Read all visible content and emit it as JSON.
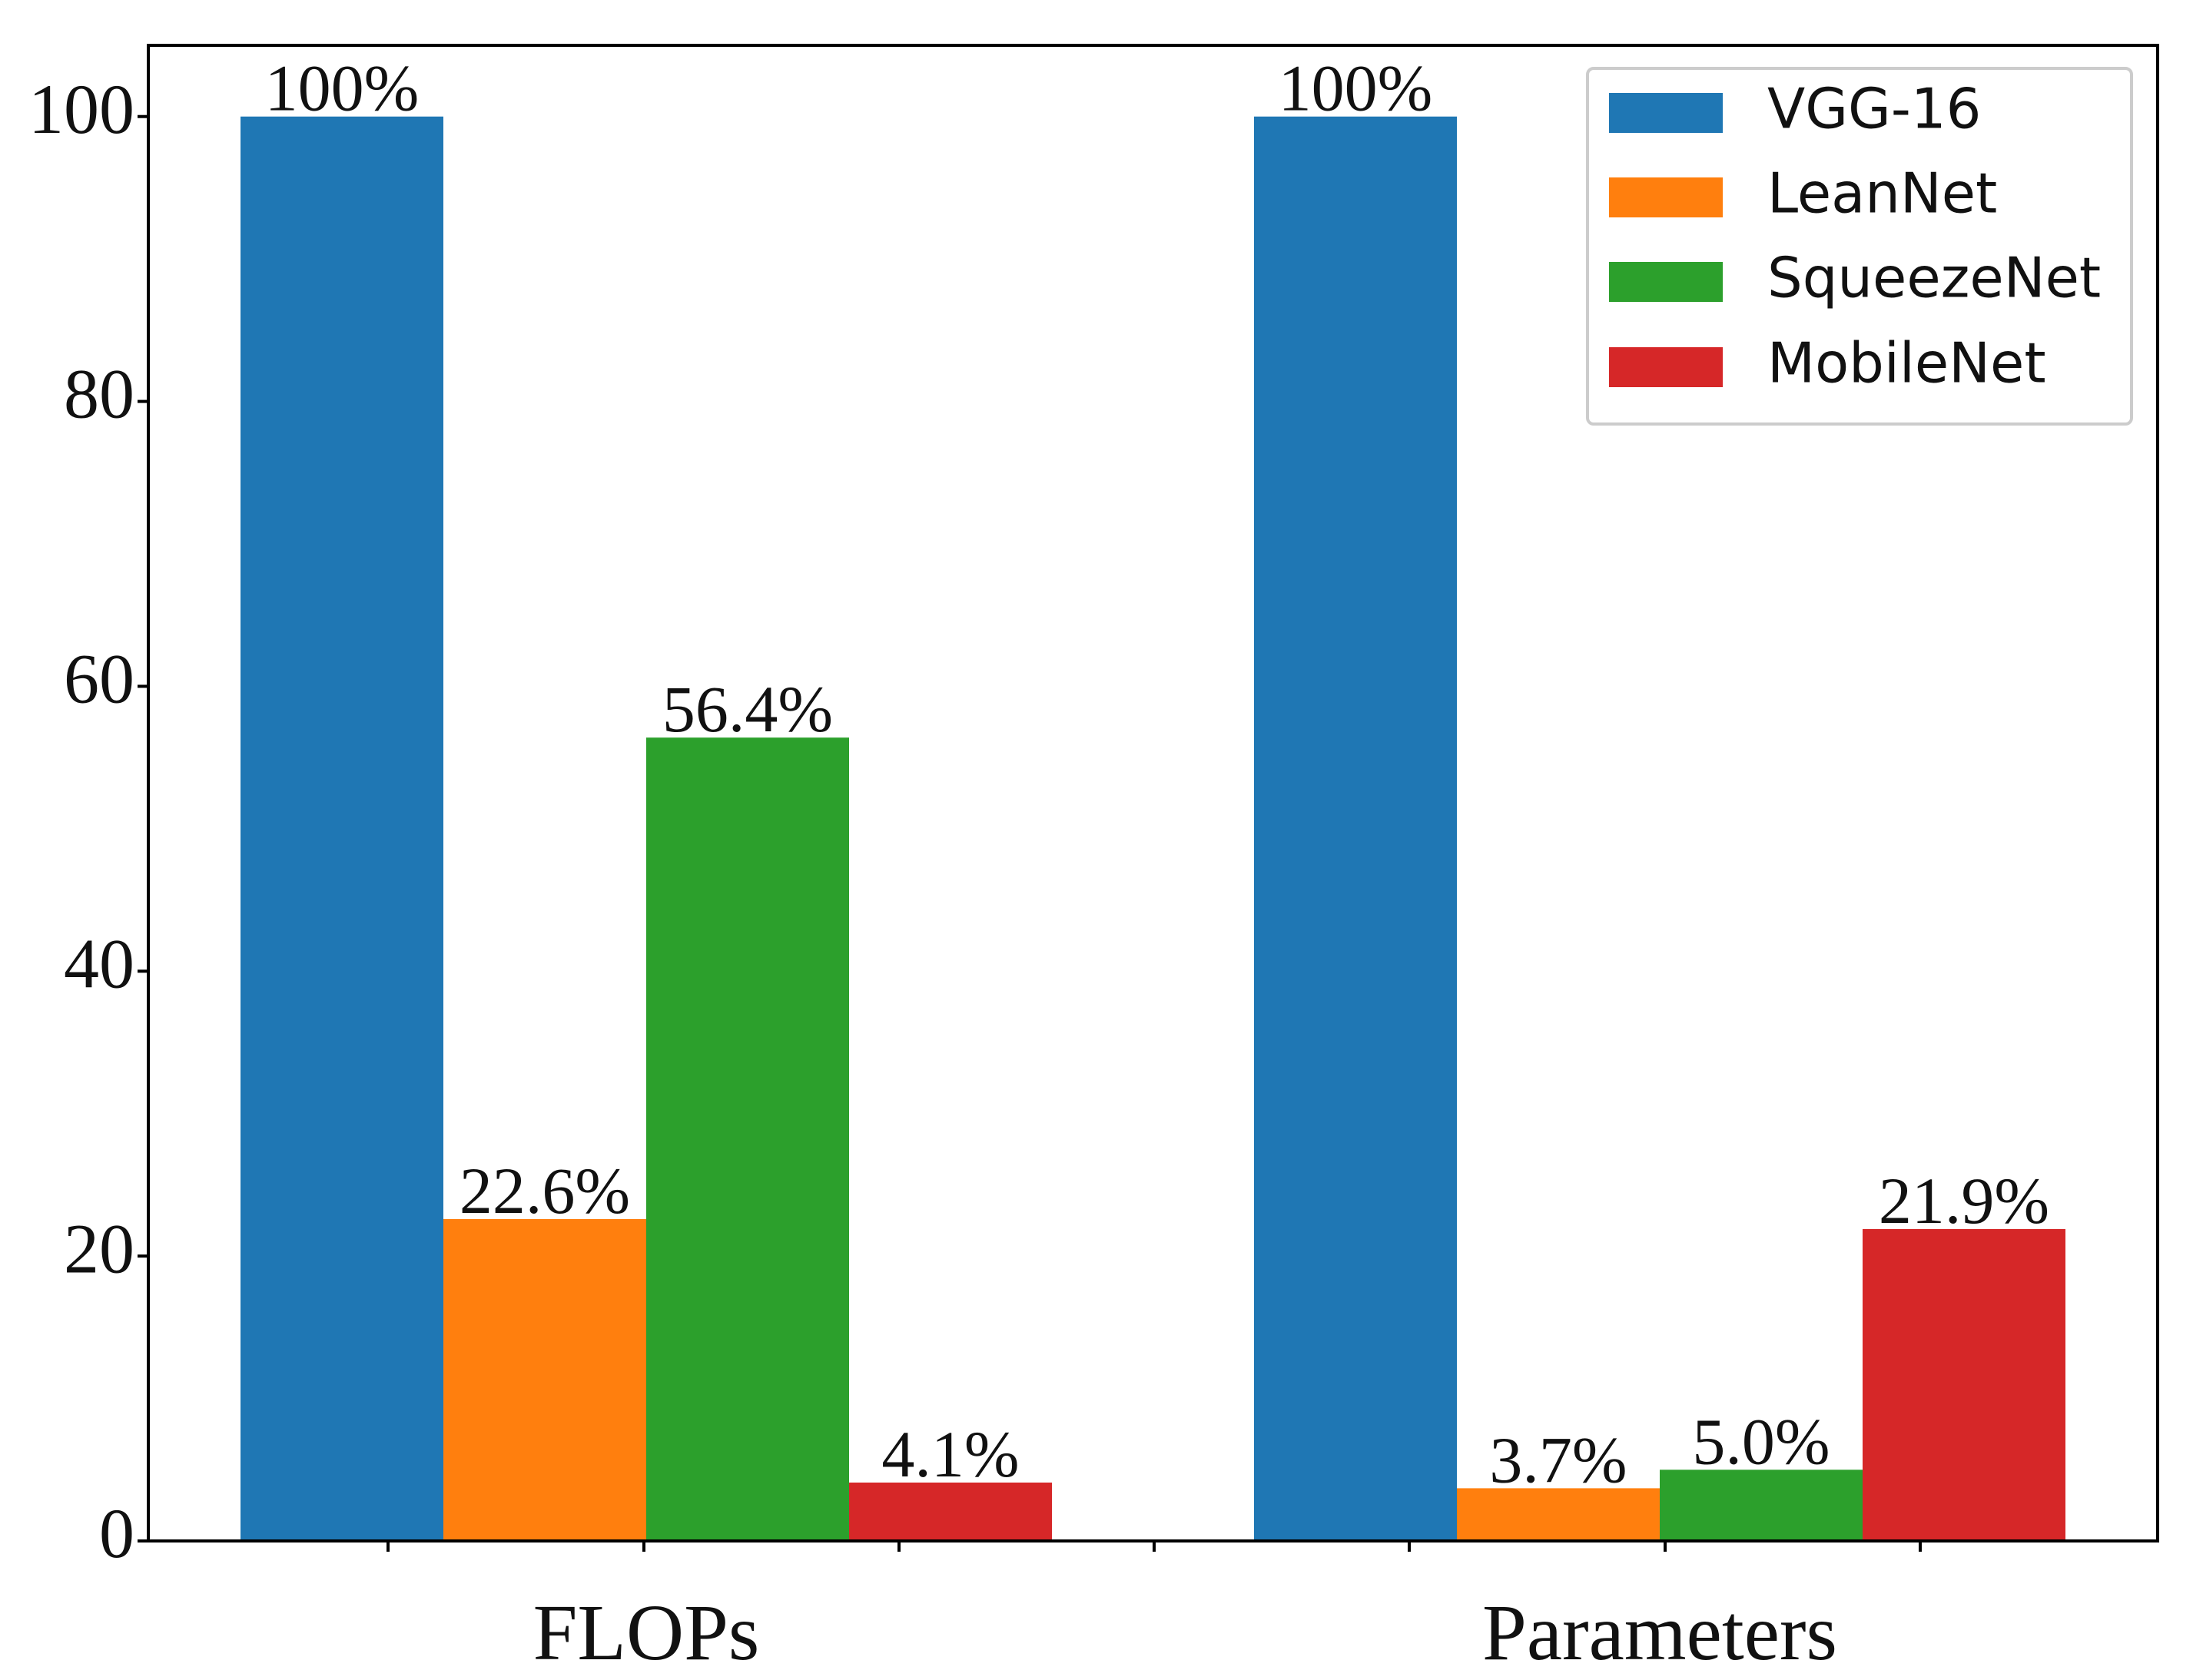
{
  "chart_data": {
    "type": "bar",
    "categories": [
      "FLOPs",
      "Parameters"
    ],
    "series": [
      {
        "name": "VGG-16",
        "color": "#1f77b4",
        "values": [
          100,
          100
        ],
        "labels": [
          "100%",
          "100%"
        ]
      },
      {
        "name": "LeanNet",
        "color": "#ff7f0e",
        "values": [
          22.6,
          3.7
        ],
        "labels": [
          "22.6%",
          "3.7%"
        ]
      },
      {
        "name": "SqueezeNet",
        "color": "#2ca02c",
        "values": [
          56.4,
          5.0
        ],
        "labels": [
          "56.4%",
          "5.0%"
        ]
      },
      {
        "name": "MobileNet",
        "color": "#d62728",
        "values": [
          4.1,
          21.9
        ],
        "labels": [
          "4.1%",
          "21.9%"
        ]
      }
    ],
    "y_ticks": [
      "0",
      "20",
      "40",
      "60",
      "80",
      "100"
    ],
    "ylim": [
      0,
      105
    ],
    "title": "",
    "xlabel": "",
    "ylabel": "",
    "grid": false,
    "legend_position": "top-right"
  }
}
